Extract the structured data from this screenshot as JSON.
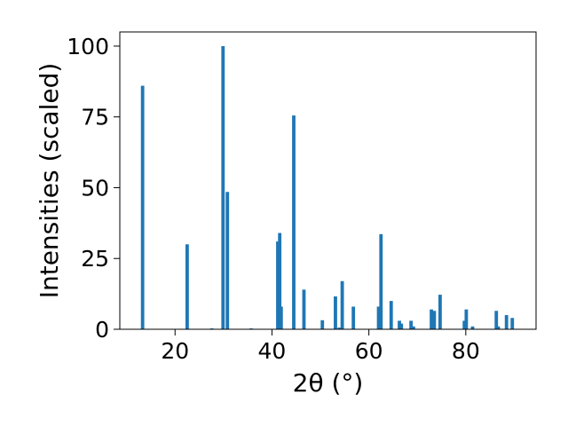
{
  "chart_data": {
    "type": "bar",
    "xlabel": "2θ (°)",
    "ylabel": "Intensities (scaled)",
    "xlim": [
      8.6,
      94.5
    ],
    "ylim": [
      0,
      105
    ],
    "xticks": [
      20,
      40,
      60,
      80
    ],
    "yticks": [
      0,
      25,
      50,
      75,
      100
    ],
    "grid": false,
    "color": "#1f77b4",
    "bar_width": 0.7,
    "x": [
      13.3,
      22.5,
      27.6,
      29.9,
      30.8,
      35.7,
      41.2,
      41.6,
      41.9,
      44.5,
      46.6,
      50.4,
      53.1,
      53.9,
      54.5,
      56.8,
      62.0,
      62.5,
      64.6,
      66.3,
      66.7,
      68.7,
      69.2,
      72.9,
      73.5,
      74.7,
      79.7,
      80.1,
      81.4,
      86.3,
      86.7,
      88.4,
      89.6
    ],
    "values": [
      86.0,
      30.0,
      0.3,
      100.0,
      48.5,
      0.3,
      31.0,
      34.0,
      8.0,
      75.5,
      14.0,
      3.2,
      11.6,
      0.6,
      17.0,
      8.0,
      8.0,
      33.6,
      10.0,
      3.0,
      2.0,
      3.0,
      1.0,
      7.0,
      6.5,
      12.2,
      3.0,
      7.0,
      1.0,
      6.5,
      1.0,
      5.0,
      4.0
    ]
  }
}
